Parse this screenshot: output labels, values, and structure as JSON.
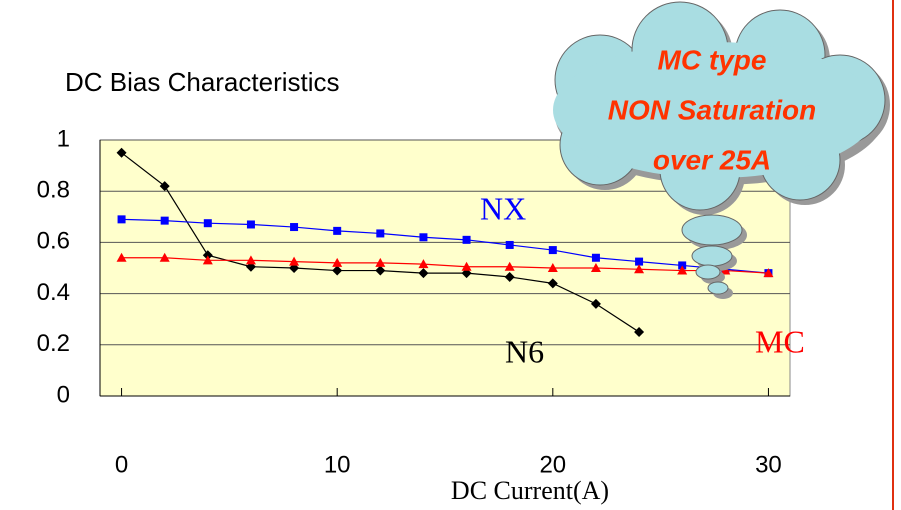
{
  "chart_data": {
    "type": "line",
    "title": "DC Bias Characteristics",
    "x_label": "DC Current(A)",
    "x": [
      0,
      2,
      4,
      6,
      8,
      10,
      12,
      14,
      16,
      18,
      20,
      22,
      24,
      26,
      28,
      30
    ],
    "series": [
      {
        "name": "N6",
        "color": "#000000",
        "marker": "diamond",
        "values": [
          0.95,
          0.82,
          0.55,
          0.505,
          0.5,
          0.49,
          0.49,
          0.48,
          0.48,
          0.465,
          0.44,
          0.36,
          0.25,
          null,
          null,
          null
        ]
      },
      {
        "name": "NX",
        "color": "#0000ff",
        "marker": "square",
        "values": [
          0.69,
          0.685,
          0.675,
          0.67,
          0.66,
          0.645,
          0.635,
          0.62,
          0.61,
          0.59,
          0.57,
          0.54,
          0.525,
          0.51,
          0.495,
          0.48
        ]
      },
      {
        "name": "MC",
        "color": "#ff0000",
        "marker": "triangle",
        "values": [
          0.54,
          0.54,
          0.53,
          0.53,
          0.525,
          0.52,
          0.52,
          0.515,
          0.505,
          0.505,
          0.5,
          0.5,
          0.495,
          0.49,
          0.49,
          0.48
        ]
      }
    ],
    "xlim": [
      -1,
      31
    ],
    "xticks": [
      0,
      10,
      20,
      30
    ],
    "ylim": [
      0,
      1
    ],
    "yticks": [
      0,
      0.2,
      0.4,
      0.6,
      0.8,
      1
    ],
    "grid": true,
    "callout": [
      "MC type",
      "NON Saturation",
      "over 25A"
    ]
  }
}
